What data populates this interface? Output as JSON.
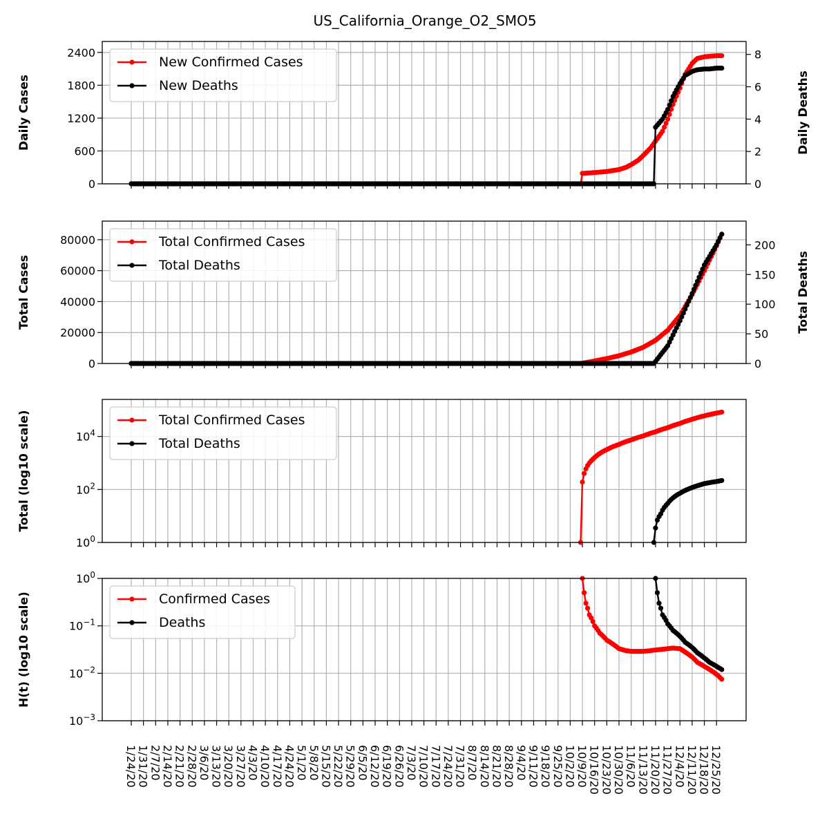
{
  "title": "US_California_Orange_O2_SMO5",
  "colors": {
    "cases": "#ff0000",
    "deaths": "#000000",
    "grid": "#b0b0b0"
  },
  "x_tick_labels": [
    "1/24/20",
    "1/31/20",
    "2/7/20",
    "2/14/20",
    "2/21/20",
    "2/28/20",
    "3/6/20",
    "3/13/20",
    "3/20/20",
    "3/27/20",
    "4/3/20",
    "4/10/20",
    "4/17/20",
    "4/24/20",
    "5/1/20",
    "5/8/20",
    "5/15/20",
    "5/22/20",
    "5/29/20",
    "6/5/20",
    "6/12/20",
    "6/19/20",
    "6/26/20",
    "7/3/20",
    "7/10/20",
    "7/17/20",
    "7/24/20",
    "7/31/20",
    "8/7/20",
    "8/14/20",
    "8/21/20",
    "8/28/20",
    "9/4/20",
    "9/11/20",
    "9/18/20",
    "9/25/20",
    "10/2/20",
    "10/9/20",
    "10/16/20",
    "10/23/20",
    "10/30/20",
    "11/6/20",
    "11/13/20",
    "11/20/20",
    "11/27/20",
    "12/4/20",
    "12/11/20",
    "12/18/20",
    "12/25/20"
  ],
  "chart_data": [
    {
      "type": "line",
      "panel": "daily",
      "ylabel": "Daily Cases",
      "ylabel_right": "Daily Deaths",
      "ylim": [
        0,
        2600
      ],
      "yticks": [
        "0",
        "600",
        "1200",
        "1800",
        "2400"
      ],
      "ylim_right": [
        0,
        8.8
      ],
      "yticks_right": [
        "0",
        "2",
        "4",
        "6",
        "8"
      ],
      "legend": "top-left",
      "grid": true,
      "series": [
        {
          "name": "New Confirmed Cases",
          "color": "#ff0000",
          "axis": "left",
          "x": [
            "1/24/20",
            "10/8/20",
            "10/9/20",
            "10/16/20",
            "10/23/20",
            "10/30/20",
            "11/3/20",
            "11/6/20",
            "11/10/20",
            "11/13/20",
            "11/17/20",
            "11/20/20",
            "11/24/20",
            "11/27/20",
            "11/30/20",
            "12/4/20",
            "12/7/20",
            "12/11/20",
            "12/14/20",
            "12/18/20",
            "12/21/20",
            "12/25/20",
            "12/28/20"
          ],
          "values": [
            0,
            0,
            190,
            205,
            225,
            260,
            300,
            350,
            430,
            520,
            650,
            780,
            960,
            1180,
            1450,
            1750,
            2000,
            2200,
            2290,
            2320,
            2330,
            2340,
            2340
          ]
        },
        {
          "name": "New Deaths",
          "color": "#000000",
          "axis": "right",
          "x": [
            "1/24/20",
            "11/19/20",
            "11/20/20",
            "11/24/20",
            "11/27/20",
            "11/30/20",
            "12/4/20",
            "12/7/20",
            "12/11/20",
            "12/14/20",
            "12/18/20",
            "12/21/20",
            "12/25/20",
            "12/28/20"
          ],
          "values": [
            0,
            0,
            3.5,
            4.0,
            4.6,
            5.4,
            6.2,
            6.7,
            6.95,
            7.05,
            7.1,
            7.1,
            7.15,
            7.15
          ]
        }
      ]
    },
    {
      "type": "line",
      "panel": "total",
      "ylabel": "Total Cases",
      "ylabel_right": "Total Deaths",
      "ylim": [
        0,
        92000
      ],
      "yticks": [
        "0",
        "20000",
        "40000",
        "60000",
        "80000"
      ],
      "ylim_right": [
        0,
        240
      ],
      "yticks_right": [
        "0",
        "50",
        "100",
        "150",
        "200"
      ],
      "legend": "top-left",
      "grid": true,
      "series": [
        {
          "name": "Total Confirmed Cases",
          "color": "#ff0000",
          "axis": "left",
          "x": [
            "1/24/20",
            "10/8/20",
            "10/9/20",
            "10/16/20",
            "10/23/20",
            "10/30/20",
            "11/6/20",
            "11/13/20",
            "11/20/20",
            "11/27/20",
            "12/4/20",
            "12/11/20",
            "12/18/20",
            "12/25/20",
            "12/28/20"
          ],
          "values": [
            0,
            0,
            190,
            1600,
            3200,
            5000,
            7400,
            10500,
            15000,
            21500,
            31000,
            44500,
            60000,
            76000,
            83500
          ]
        },
        {
          "name": "Total Deaths",
          "color": "#000000",
          "axis": "right",
          "x": [
            "1/24/20",
            "11/19/20",
            "11/20/20",
            "11/27/20",
            "12/4/20",
            "12/11/20",
            "12/18/20",
            "12/25/20",
            "12/28/20"
          ],
          "values": [
            0,
            0,
            3.5,
            30,
            72,
            118,
            166,
            200,
            218
          ]
        }
      ]
    },
    {
      "type": "line",
      "panel": "log_total",
      "ylabel": "Total (log10 scale)",
      "yscale": "log",
      "ylim": [
        1,
        250000
      ],
      "yticks": [
        {
          "base": "10",
          "exp": "0"
        },
        {
          "base": "10",
          "exp": "2"
        },
        {
          "base": "10",
          "exp": "4"
        }
      ],
      "legend": "top-left",
      "grid": true,
      "series": [
        {
          "name": "Total Confirmed Cases",
          "color": "#ff0000",
          "x": [
            "10/8/20",
            "10/9/20",
            "10/10/20",
            "10/12/20",
            "10/16/20",
            "10/23/20",
            "10/30/20",
            "11/6/20",
            "11/13/20",
            "11/20/20",
            "11/27/20",
            "12/4/20",
            "12/11/20",
            "12/18/20",
            "12/25/20",
            "12/28/20"
          ],
          "values": [
            1,
            190,
            400,
            800,
            1600,
            3200,
            5000,
            7400,
            10500,
            15000,
            21500,
            31000,
            44500,
            60000,
            76000,
            83500
          ]
        },
        {
          "name": "Total Deaths",
          "color": "#000000",
          "x": [
            "11/19/20",
            "11/20/20",
            "11/21/20",
            "11/23/20",
            "11/27/20",
            "12/4/20",
            "12/11/20",
            "12/18/20",
            "12/25/20",
            "12/28/20"
          ],
          "values": [
            1,
            3.5,
            7,
            12,
            30,
            72,
            118,
            166,
            200,
            218
          ]
        }
      ]
    },
    {
      "type": "line",
      "panel": "hazard",
      "ylabel": "H(t) (log10 scale)",
      "yscale": "log",
      "ylim": [
        0.001,
        1
      ],
      "yticks": [
        {
          "base": "10",
          "exp": "−3"
        },
        {
          "base": "10",
          "exp": "−2"
        },
        {
          "base": "10",
          "exp": "−1"
        },
        {
          "base": "10",
          "exp": "0"
        }
      ],
      "legend": "top-left",
      "grid": true,
      "series": [
        {
          "name": "Confirmed Cases",
          "color": "#ff0000",
          "x": [
            "10/9/20",
            "10/10/20",
            "10/11/20",
            "10/13/20",
            "10/16/20",
            "10/19/20",
            "10/23/20",
            "10/27/20",
            "10/30/20",
            "11/3/20",
            "11/6/20",
            "11/10/20",
            "11/13/20",
            "11/17/20",
            "11/20/20",
            "11/24/20",
            "11/27/20",
            "11/30/20",
            "12/4/20",
            "12/7/20",
            "12/11/20",
            "12/14/20",
            "12/18/20",
            "12/21/20",
            "12/25/20",
            "12/28/20"
          ],
          "values": [
            1.0,
            0.5,
            0.3,
            0.17,
            0.1,
            0.07,
            0.05,
            0.04,
            0.033,
            0.03,
            0.029,
            0.029,
            0.029,
            0.03,
            0.031,
            0.032,
            0.033,
            0.034,
            0.033,
            0.028,
            0.022,
            0.017,
            0.014,
            0.012,
            0.0095,
            0.0075
          ]
        },
        {
          "name": "Deaths",
          "color": "#000000",
          "x": [
            "11/20/20",
            "11/21/20",
            "11/22/20",
            "11/24/20",
            "11/27/20",
            "11/30/20",
            "12/4/20",
            "12/7/20",
            "12/11/20",
            "12/14/20",
            "12/18/20",
            "12/21/20",
            "12/25/20",
            "12/28/20"
          ],
          "values": [
            1.0,
            0.5,
            0.3,
            0.17,
            0.11,
            0.08,
            0.06,
            0.045,
            0.035,
            0.027,
            0.021,
            0.017,
            0.014,
            0.012
          ]
        }
      ]
    }
  ]
}
